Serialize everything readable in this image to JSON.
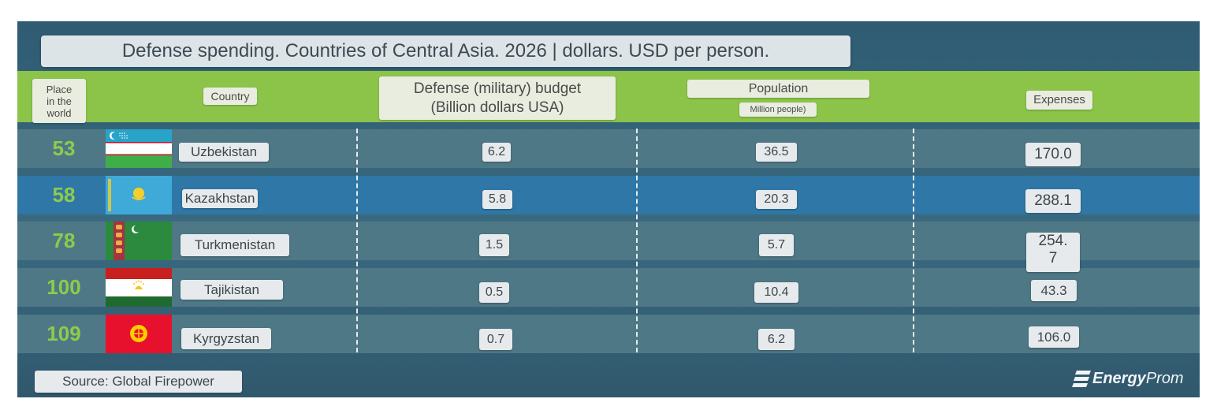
{
  "title": "Defense spending. Countries of Central Asia. 2026 | dollars. USD per person.",
  "headers": {
    "place": "Place\nin the\nworld",
    "country": "Country",
    "budget": "Defense (military) budget\n(Billion dollars USA)",
    "population": "Population",
    "population_unit": "Million people)",
    "expenses": "Expenses"
  },
  "chart_data": {
    "type": "table",
    "title": "Defense spending. Countries of Central Asia. 2026 | dollars. USD per person.",
    "columns": [
      "Place in the world",
      "Country",
      "Defense (military) budget (Billion dollars USA)",
      "Population (Million people)",
      "Expenses"
    ],
    "rows": [
      {
        "rank": "53",
        "country": "Uzbekistan",
        "budget": "6.2",
        "population": "36.5",
        "expenses": "170.0",
        "flag": "uzbekistan-flag"
      },
      {
        "rank": "58",
        "country": "Kazakhstan",
        "budget": "5.8",
        "population": "20.3",
        "expenses": "288.1",
        "flag": "kazakhstan-flag"
      },
      {
        "rank": "78",
        "country": "Turkmenistan",
        "budget": "1.5",
        "population": "5.7",
        "expenses": "254.\n7",
        "flag": "turkmenistan-flag"
      },
      {
        "rank": "100",
        "country": "Tajikistan",
        "budget": "0.5",
        "population": "10.4",
        "expenses": "43.3",
        "flag": "tajikistan-flag"
      },
      {
        "rank": "109",
        "country": "Kyrgyzstan",
        "budget": "0.7",
        "population": "6.2",
        "expenses": "106.0",
        "flag": "kyrgyzstan-flag"
      }
    ]
  },
  "footer": {
    "source": "Source: Global Firepower",
    "logo_bold": "Energy",
    "logo_light": "Prom"
  },
  "colors": {
    "header_band": "#8cc44a",
    "rank_text": "#8ecb4b",
    "row": "#4f7886",
    "row_highlight": "#2f77a6"
  }
}
